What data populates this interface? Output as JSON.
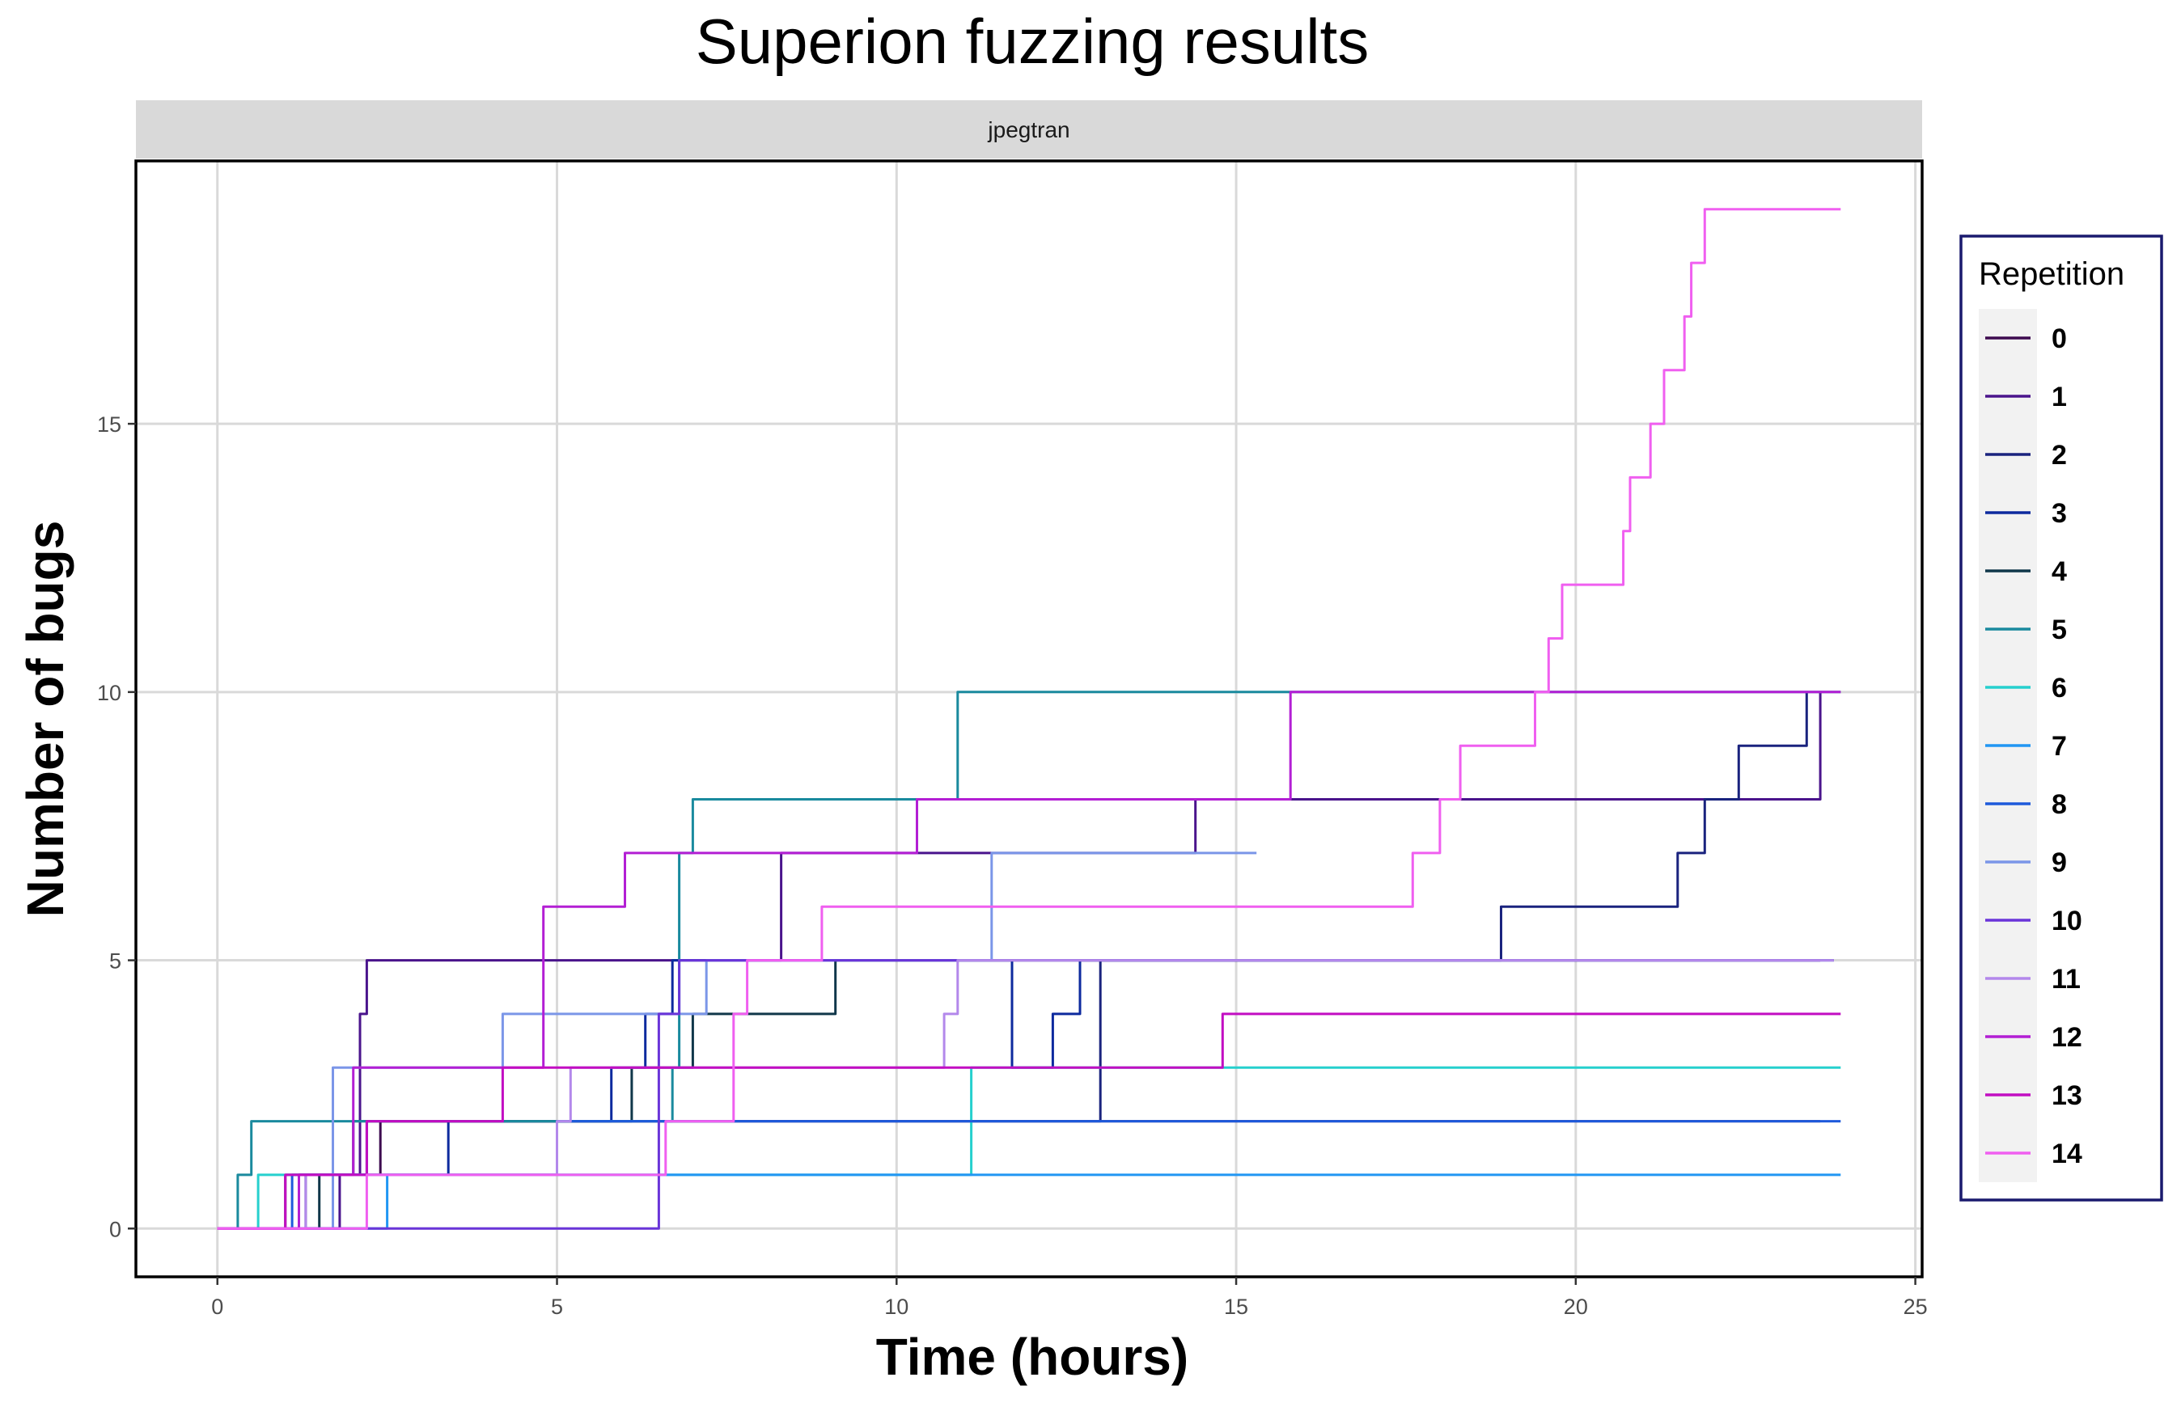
{
  "chart_data": {
    "type": "line",
    "step": true,
    "title": "Superion fuzzing results",
    "facet": "jpegtran",
    "xlabel": "Time (hours)",
    "ylabel": "Number of bugs",
    "xlim": [
      -1.2,
      25.1
    ],
    "ylim": [
      -0.9,
      19.9
    ],
    "xticks": [
      0,
      5,
      10,
      15,
      20,
      25
    ],
    "yticks": [
      0,
      5,
      10,
      15
    ],
    "grid": true,
    "legend": {
      "title": "Repetition",
      "position": "right"
    },
    "series": [
      {
        "name": "0",
        "color": "#3d0a4f",
        "points": [
          [
            0,
            0
          ],
          [
            1.0,
            1
          ],
          [
            2.4,
            2
          ],
          [
            23.6,
            2
          ]
        ]
      },
      {
        "name": "1",
        "color": "#4a148c",
        "points": [
          [
            0,
            0
          ],
          [
            1.8,
            1
          ],
          [
            2.1,
            4
          ],
          [
            2.2,
            5
          ],
          [
            4.7,
            5
          ],
          [
            8.3,
            7
          ],
          [
            14.3,
            7
          ],
          [
            14.4,
            8
          ],
          [
            23.5,
            8
          ],
          [
            23.6,
            10
          ]
        ]
      },
      {
        "name": "2",
        "color": "#1a237e",
        "points": [
          [
            0,
            0
          ],
          [
            1.3,
            1
          ],
          [
            2.2,
            2
          ],
          [
            13.0,
            5
          ],
          [
            18.8,
            5
          ],
          [
            18.9,
            6
          ],
          [
            19.7,
            6
          ],
          [
            21.5,
            7
          ],
          [
            21.9,
            8
          ],
          [
            22.4,
            9
          ],
          [
            23.3,
            9
          ],
          [
            23.4,
            10
          ]
        ]
      },
      {
        "name": "3",
        "color": "#0d2a9e",
        "points": [
          [
            0,
            0
          ],
          [
            1.2,
            1
          ],
          [
            3.4,
            2
          ],
          [
            5.8,
            3
          ],
          [
            6.3,
            4
          ],
          [
            6.7,
            5
          ],
          [
            11.7,
            3
          ],
          [
            12.3,
            4
          ],
          [
            12.7,
            5
          ],
          [
            23.8,
            5
          ]
        ]
      },
      {
        "name": "4",
        "color": "#10374a",
        "points": [
          [
            0,
            0
          ],
          [
            1.5,
            1
          ],
          [
            2.0,
            2
          ],
          [
            6.1,
            3
          ],
          [
            7.0,
            4
          ],
          [
            9.1,
            5
          ],
          [
            23.6,
            5
          ]
        ]
      },
      {
        "name": "5",
        "color": "#1a8a9e",
        "points": [
          [
            0,
            0
          ],
          [
            0.3,
            1
          ],
          [
            0.5,
            2
          ],
          [
            1.6,
            2
          ],
          [
            6.7,
            3
          ],
          [
            6.8,
            7
          ],
          [
            7.0,
            8
          ],
          [
            10.7,
            8
          ],
          [
            10.9,
            10
          ],
          [
            23.9,
            10
          ]
        ]
      },
      {
        "name": "6",
        "color": "#26d0ce",
        "points": [
          [
            0,
            0
          ],
          [
            0.6,
            1
          ],
          [
            1.5,
            1
          ],
          [
            11.0,
            1
          ],
          [
            11.1,
            3
          ],
          [
            23.9,
            3
          ]
        ]
      },
      {
        "name": "7",
        "color": "#2196f3",
        "points": [
          [
            0,
            0
          ],
          [
            2.5,
            1
          ],
          [
            23.9,
            1
          ]
        ]
      },
      {
        "name": "8",
        "color": "#1e5adb",
        "points": [
          [
            0,
            0
          ],
          [
            1.1,
            1
          ],
          [
            3.4,
            1
          ],
          [
            5.0,
            2
          ],
          [
            10.0,
            2
          ],
          [
            23.9,
            2
          ]
        ]
      },
      {
        "name": "9",
        "color": "#7b96e8",
        "points": [
          [
            0,
            0
          ],
          [
            1.7,
            3
          ],
          [
            4.2,
            4
          ],
          [
            7.2,
            4
          ],
          [
            7.2,
            5
          ],
          [
            11.2,
            5
          ],
          [
            11.4,
            7
          ],
          [
            15.3,
            7
          ]
        ]
      },
      {
        "name": "10",
        "color": "#6a35d9",
        "points": [
          [
            0,
            0
          ],
          [
            6.5,
            0
          ],
          [
            6.5,
            4
          ],
          [
            6.7,
            4
          ],
          [
            6.8,
            5
          ],
          [
            23.6,
            5
          ]
        ]
      },
      {
        "name": "11",
        "color": "#b388eb",
        "points": [
          [
            0,
            0
          ],
          [
            1.3,
            1
          ],
          [
            5.0,
            2
          ],
          [
            5.2,
            3
          ],
          [
            10.5,
            3
          ],
          [
            10.7,
            4
          ],
          [
            10.9,
            5
          ],
          [
            23.8,
            5
          ]
        ]
      },
      {
        "name": "12",
        "color": "#b31fd4",
        "points": [
          [
            0,
            0
          ],
          [
            1.2,
            1
          ],
          [
            2.0,
            3
          ],
          [
            4.1,
            3
          ],
          [
            4.8,
            6
          ],
          [
            6.0,
            7
          ],
          [
            10.2,
            7
          ],
          [
            10.3,
            8
          ],
          [
            15.5,
            8
          ],
          [
            15.8,
            10
          ],
          [
            23.9,
            10
          ]
        ]
      },
      {
        "name": "13",
        "color": "#c20ec2",
        "points": [
          [
            0,
            0
          ],
          [
            1.0,
            1
          ],
          [
            2.2,
            2
          ],
          [
            4.2,
            3
          ],
          [
            14.7,
            3
          ],
          [
            14.8,
            4
          ],
          [
            23.9,
            4
          ]
        ]
      },
      {
        "name": "14",
        "color": "#f05ff0",
        "points": [
          [
            0,
            0
          ],
          [
            2.2,
            1
          ],
          [
            6.6,
            2
          ],
          [
            7.6,
            4
          ],
          [
            7.8,
            5
          ],
          [
            8.9,
            5
          ],
          [
            8.9,
            6
          ],
          [
            17.3,
            6
          ],
          [
            17.6,
            7
          ],
          [
            18.0,
            8
          ],
          [
            18.3,
            9
          ],
          [
            19.4,
            10
          ],
          [
            19.6,
            11
          ],
          [
            19.8,
            12
          ],
          [
            20.7,
            13
          ],
          [
            20.8,
            14
          ],
          [
            21.1,
            15
          ],
          [
            21.3,
            16
          ],
          [
            21.6,
            17
          ],
          [
            21.7,
            18
          ],
          [
            21.9,
            19
          ],
          [
            23.9,
            19
          ]
        ]
      }
    ]
  }
}
